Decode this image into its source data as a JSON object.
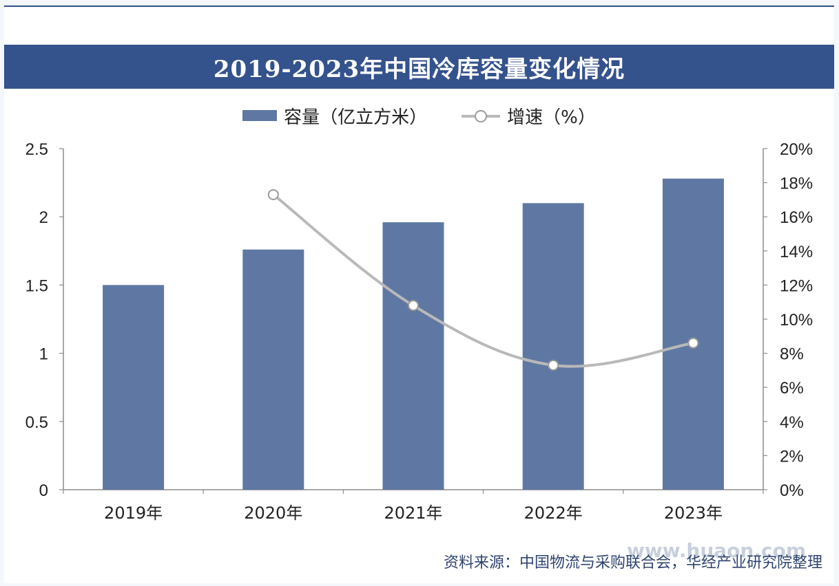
{
  "chart_data": {
    "type": "bar",
    "title": "2019-2023年中国冷库容量变化情况",
    "categories": [
      "2019年",
      "2020年",
      "2021年",
      "2022年",
      "2023年"
    ],
    "series": [
      {
        "name": "容量（亿立方米）",
        "type": "bar",
        "axis": "left",
        "values": [
          1.5,
          1.76,
          1.96,
          2.1,
          2.28
        ],
        "color": "#5f78a3"
      },
      {
        "name": "增速（%）",
        "type": "line",
        "axis": "right",
        "values": [
          null,
          17.3,
          10.8,
          7.3,
          8.6
        ],
        "color": "#b9b9b9"
      }
    ],
    "y_left": {
      "ylim": [
        0,
        2.5
      ],
      "ticks": [
        "0",
        "0.5",
        "1",
        "1.5",
        "2",
        "2.5"
      ]
    },
    "y_right": {
      "ylim": [
        0,
        20
      ],
      "ticks": [
        "0%",
        "2%",
        "4%",
        "6%",
        "8%",
        "10%",
        "12%",
        "14%",
        "16%",
        "18%",
        "20%"
      ]
    },
    "grid": false,
    "legend_position": "top"
  },
  "source_text": "资料来源：中国物流与采购联合会，华经产业研究院整理",
  "watermark": "www.huaon.com"
}
